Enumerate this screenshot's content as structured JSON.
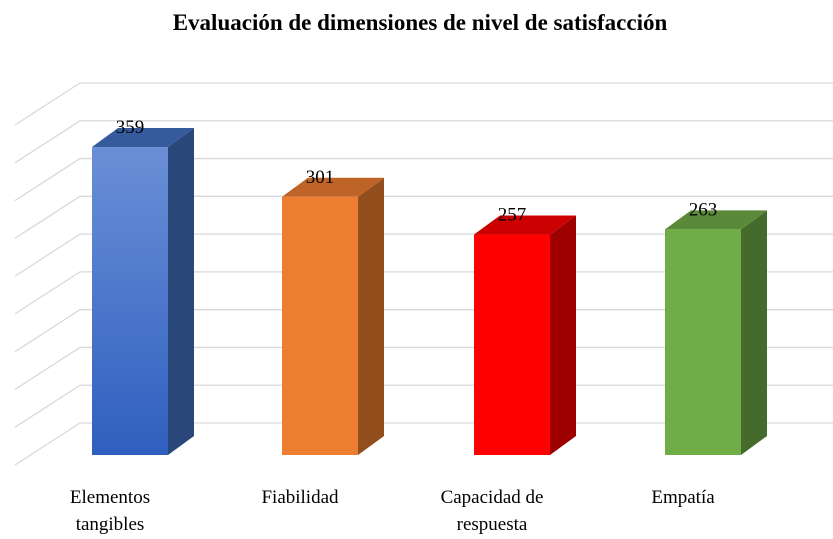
{
  "chart_data": {
    "type": "bar3d",
    "title": "Evaluación de dimensiones de nivel de satisfacción",
    "categories": [
      "Elementos tangibles",
      "Fiabilidad",
      "Capacidad de respuesta",
      "Empatía"
    ],
    "values": [
      359,
      301,
      257,
      263
    ],
    "colors": [
      "#4472c4",
      "#ed7d31",
      "#ff0000",
      "#70ad47"
    ],
    "ylim": [
      0,
      450
    ],
    "yticks": [
      0,
      50,
      100,
      150,
      200,
      250,
      300,
      350,
      400,
      450
    ],
    "grid": true
  }
}
